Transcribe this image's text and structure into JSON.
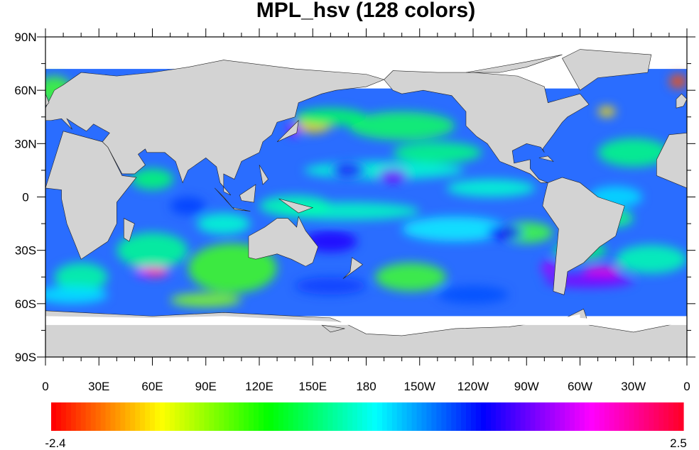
{
  "chart_data": {
    "type": "heatmap",
    "subtype": "filled contour map, global cylindrical equidistant projection",
    "title": "MPL_hsv (128 colors)",
    "colormap": "MPL_hsv",
    "ncolors": 128,
    "colorbar": {
      "min_label": "-2.4",
      "max_label": "2.5",
      "min": -2.4,
      "max": 2.5,
      "orientation": "horizontal",
      "placement": "bottom"
    },
    "lon_range": [
      0,
      360
    ],
    "lat_range": [
      -90,
      90
    ],
    "lon_tick_labels": [
      "0",
      "30E",
      "60E",
      "90E",
      "120E",
      "150E",
      "180",
      "150W",
      "120W",
      "90W",
      "60W",
      "30W",
      "0"
    ],
    "lat_tick_labels": [
      "90N",
      "60N",
      "30N",
      "0",
      "30S",
      "60S",
      "90S"
    ],
    "land_color": "#d3d3d3",
    "missing_color": "#ffffff"
  }
}
